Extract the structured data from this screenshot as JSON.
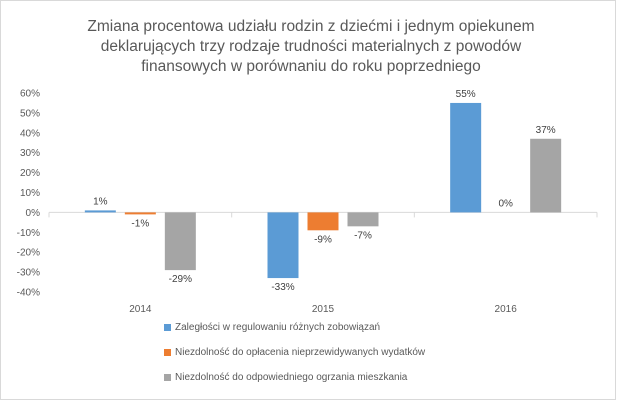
{
  "chart_data": {
    "type": "bar",
    "title_lines": [
      "Zmiana procentowa udziału rodzin z dziećmi i jednym opiekunem",
      "deklarujących trzy rodzaje trudności materialnych z powodów",
      "finansowych w porównaniu do roku poprzedniego"
    ],
    "categories": [
      "2014",
      "2015",
      "2016"
    ],
    "series": [
      {
        "name": "Zaległości w regulowaniu różnych zobowiązań",
        "color": "#5b9bd5",
        "values": [
          1,
          -33,
          55
        ],
        "labels": [
          "1%",
          "-33%",
          "55%"
        ]
      },
      {
        "name": "Niezdolność do opłacenia nieprzewidywanych wydatków",
        "color": "#ed7d31",
        "values": [
          -1,
          -9,
          0
        ],
        "labels": [
          "-1%",
          "-9%",
          "0%"
        ]
      },
      {
        "name": "Niezdolność do odpowiedniego ogrzania mieszkania",
        "color": "#a5a5a5",
        "values": [
          -29,
          -7,
          37
        ],
        "labels": [
          "-29%",
          "-7%",
          "37%"
        ]
      }
    ],
    "ylim": [
      -40,
      60
    ],
    "yticks": [
      60,
      50,
      40,
      30,
      20,
      10,
      0,
      -10,
      -20,
      -30,
      -40
    ],
    "ytick_labels": [
      "60%",
      "50%",
      "40%",
      "30%",
      "20%",
      "10%",
      "0%",
      "-10%",
      "-20%",
      "-30%",
      "-40%"
    ],
    "grid": false,
    "legend_position": "bottom"
  }
}
